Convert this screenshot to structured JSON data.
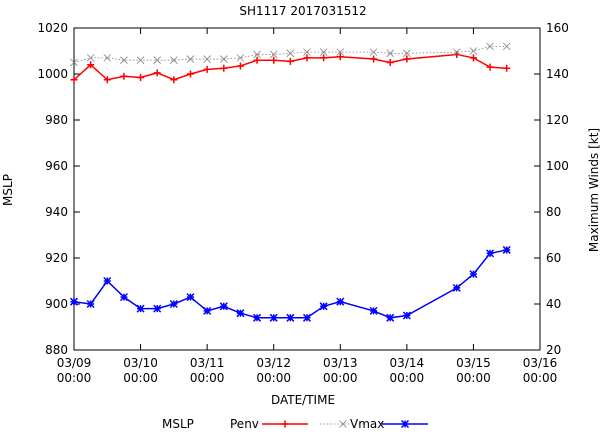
{
  "chart_data": {
    "type": "line",
    "title": "SH1117 2017031512",
    "xlabel": "DATE/TIME",
    "ylabel": "MSLP",
    "y2label": "Maximum Winds [kt]",
    "x_ticks": [
      {
        "l1": "03/09",
        "l2": "00:00"
      },
      {
        "l1": "03/10",
        "l2": "00:00"
      },
      {
        "l1": "03/11",
        "l2": "00:00"
      },
      {
        "l1": "03/12",
        "l2": "00:00"
      },
      {
        "l1": "03/13",
        "l2": "00:00"
      },
      {
        "l1": "03/14",
        "l2": "00:00"
      },
      {
        "l1": "03/15",
        "l2": "00:00"
      },
      {
        "l1": "03/16",
        "l2": "00:00"
      }
    ],
    "xlim": [
      "2017-03-09 00:00",
      "2017-03-16 00:00"
    ],
    "ylim": [
      880,
      1020
    ],
    "y2lim": [
      20,
      160
    ],
    "y_ticks": [
      880,
      900,
      920,
      940,
      960,
      980,
      1000,
      1020
    ],
    "y2_ticks": [
      20,
      40,
      60,
      80,
      100,
      120,
      140,
      160
    ],
    "grid": false,
    "legend": {
      "title": "MSLP",
      "placement": "bottom",
      "entries": [
        "Penv",
        "Vmax"
      ]
    },
    "series": [
      {
        "name": "Penv",
        "axis": "left",
        "color": "#ff0000",
        "marker": "plus",
        "x": [
          "2017-03-09 00:00",
          "2017-03-09 06:00",
          "2017-03-09 12:00",
          "2017-03-09 18:00",
          "2017-03-10 00:00",
          "2017-03-10 06:00",
          "2017-03-10 12:00",
          "2017-03-10 18:00",
          "2017-03-11 00:00",
          "2017-03-11 06:00",
          "2017-03-11 12:00",
          "2017-03-11 18:00",
          "2017-03-12 00:00",
          "2017-03-12 06:00",
          "2017-03-12 12:00",
          "2017-03-12 18:00",
          "2017-03-13 00:00",
          "2017-03-13 12:00",
          "2017-03-13 18:00",
          "2017-03-14 00:00",
          "2017-03-14 18:00",
          "2017-03-15 00:00",
          "2017-03-15 06:00",
          "2017-03-15 12:00"
        ],
        "y": [
          997.5,
          1004,
          997.5,
          999,
          998.5,
          1000.5,
          997.5,
          1000,
          1002,
          1002.5,
          1003.5,
          1006,
          1006,
          1005.5,
          1007,
          1007,
          1007.5,
          1006.5,
          1005,
          1006.5,
          1008.5,
          1007,
          1003,
          1002.5
        ]
      },
      {
        "name": "",
        "axis": "right",
        "color": "#808080",
        "marker": "cross",
        "x": [
          "2017-03-09 00:00",
          "2017-03-09 06:00",
          "2017-03-09 12:00",
          "2017-03-09 18:00",
          "2017-03-10 00:00",
          "2017-03-10 06:00",
          "2017-03-10 12:00",
          "2017-03-10 18:00",
          "2017-03-11 00:00",
          "2017-03-11 06:00",
          "2017-03-11 12:00",
          "2017-03-11 18:00",
          "2017-03-12 00:00",
          "2017-03-12 06:00",
          "2017-03-12 12:00",
          "2017-03-12 18:00",
          "2017-03-13 00:00",
          "2017-03-13 12:00",
          "2017-03-13 18:00",
          "2017-03-14 00:00",
          "2017-03-14 18:00",
          "2017-03-15 00:00",
          "2017-03-15 06:00",
          "2017-03-15 12:00"
        ],
        "y": [
          145,
          147,
          147,
          146,
          146,
          146,
          146,
          146.5,
          146.5,
          146.5,
          147,
          148.5,
          148.5,
          149,
          149.5,
          149.5,
          149.5,
          149.5,
          149,
          149,
          149.5,
          150,
          152,
          152
        ]
      },
      {
        "name": "Vmax",
        "axis": "right",
        "color": "#0000ff",
        "marker": "star",
        "x": [
          "2017-03-09 00:00",
          "2017-03-09 06:00",
          "2017-03-09 12:00",
          "2017-03-09 18:00",
          "2017-03-10 00:00",
          "2017-03-10 06:00",
          "2017-03-10 12:00",
          "2017-03-10 18:00",
          "2017-03-11 00:00",
          "2017-03-11 06:00",
          "2017-03-11 12:00",
          "2017-03-11 18:00",
          "2017-03-12 00:00",
          "2017-03-12 06:00",
          "2017-03-12 12:00",
          "2017-03-12 18:00",
          "2017-03-13 00:00",
          "2017-03-13 12:00",
          "2017-03-13 18:00",
          "2017-03-14 00:00",
          "2017-03-14 18:00",
          "2017-03-15 00:00",
          "2017-03-15 06:00",
          "2017-03-15 12:00"
        ],
        "y": [
          41,
          40,
          50,
          43,
          38,
          38,
          40,
          43,
          37,
          39,
          36,
          34,
          34,
          34,
          34,
          39,
          41,
          37,
          34,
          35,
          47,
          53,
          62,
          63.5
        ]
      }
    ]
  }
}
